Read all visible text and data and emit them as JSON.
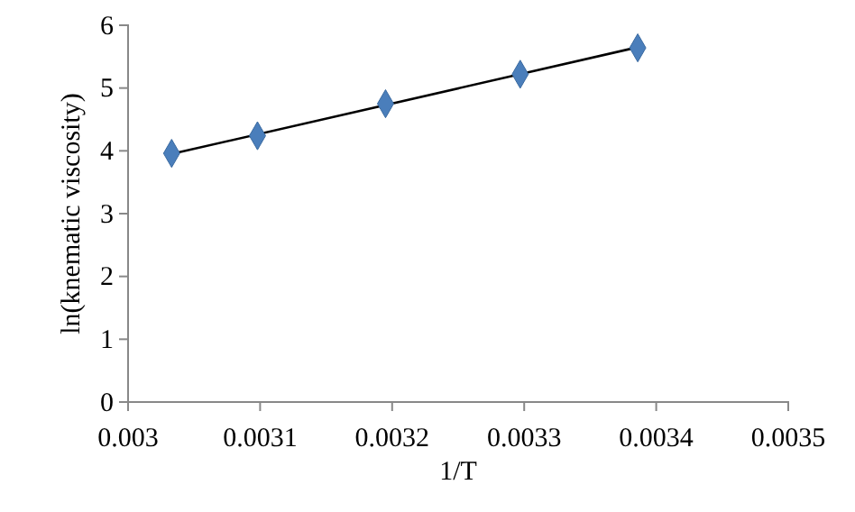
{
  "chart_data": {
    "type": "scatter",
    "xlabel": "1/T",
    "ylabel": "ln(knematic viscosity)",
    "xlim": [
      0.003,
      0.0035
    ],
    "xticks": [
      0.003,
      0.0031,
      0.0032,
      0.0033,
      0.0034,
      0.0035
    ],
    "ylim": [
      0,
      6
    ],
    "yticks": [
      0,
      1,
      2,
      3,
      4,
      5,
      6
    ],
    "grid": false,
    "series": [
      {
        "marker": "diamond",
        "color": "#4a7ebb",
        "x": [
          0.003033,
          0.003098,
          0.003195,
          0.003297,
          0.003386
        ],
        "values": [
          3.96,
          4.24,
          4.75,
          5.22,
          5.64
        ]
      },
      {
        "type": "line",
        "color": "#000000",
        "line_style": "solid",
        "x": [
          0.003033,
          0.003386
        ],
        "values": [
          3.95,
          5.65
        ]
      }
    ]
  }
}
